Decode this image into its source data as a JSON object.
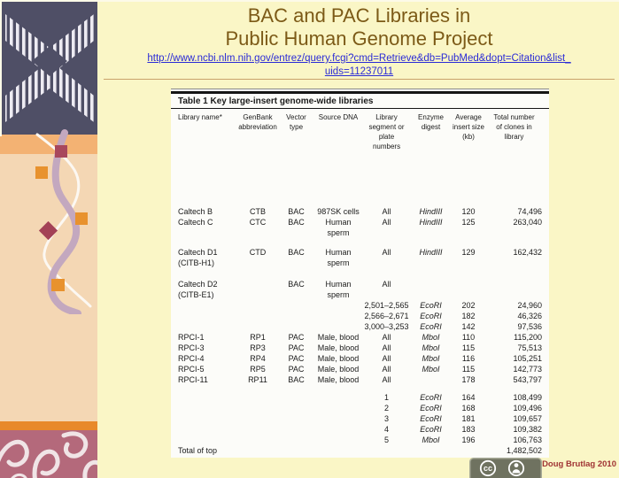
{
  "slide": {
    "title_line1": "BAC and PAC Libraries in",
    "title_line2": "Public Human Genome Project",
    "url_line1": "http://www.ncbi.nlm.nih.gov/entrez/query.fcgi?cmd=Retrieve&db=PubMed&dopt=Citation&list_",
    "url_line2": "uids=11237011",
    "credit": "Doug Brutlag 2010"
  },
  "license": {
    "cc_label": "cc",
    "by_label": "BY"
  },
  "table": {
    "title": "Table 1 Key large-insert genome-wide libraries",
    "columns": [
      "Library name*",
      "GenBank\nabbreviation",
      "Vector\ntype",
      "Source DNA",
      "Library\nsegment or\nplate\nnumbers",
      "Enzyme\ndigest",
      "Average\ninsert size\n(kb)",
      "Total number\nof clones in\nlibrary"
    ],
    "rows": [
      {
        "spacer": 62
      },
      {
        "cells": [
          "Caltech B",
          "CTB",
          "BAC",
          "987SK cells",
          "All",
          "HindIII",
          "120",
          "74,496"
        ]
      },
      {
        "cells": [
          "Caltech C",
          "CTC",
          "BAC",
          "Human\nsperm",
          "All",
          "HindIII",
          "125",
          "263,040"
        ]
      },
      {
        "spacer": 10
      },
      {
        "cells": [
          "Caltech D1\n(CITB-H1)",
          "CTD",
          "BAC",
          "Human\nsperm",
          "All",
          "HindIII",
          "129",
          "162,432"
        ]
      },
      {
        "spacer": 12
      },
      {
        "cells": [
          "Caltech D2\n(CITB-E1)",
          "",
          "BAC",
          "Human\nsperm",
          "All",
          "",
          "",
          ""
        ]
      },
      {
        "cells": [
          "",
          "",
          "",
          "",
          "2,501–2,565",
          "EcoRI",
          "202",
          "24,960"
        ]
      },
      {
        "cells": [
          "",
          "",
          "",
          "",
          "2,566–2,671",
          "EcoRI",
          "182",
          "46,326"
        ]
      },
      {
        "cells": [
          "",
          "",
          "",
          "",
          "3,000–3,253",
          "EcoRI",
          "142",
          "97,536"
        ]
      },
      {
        "cells": [
          "RPCI-1",
          "RP1",
          "PAC",
          "Male, blood",
          "All",
          "MboI",
          "110",
          "115,200"
        ]
      },
      {
        "cells": [
          "RPCI-3",
          "RP3",
          "PAC",
          "Male, blood",
          "All",
          "MboI",
          "115",
          "75,513"
        ]
      },
      {
        "cells": [
          "RPCI-4",
          "RP4",
          "PAC",
          "Male, blood",
          "All",
          "MboI",
          "116",
          "105,251"
        ]
      },
      {
        "cells": [
          "RPCI-5",
          "RP5",
          "PAC",
          "Male, blood",
          "All",
          "MboI",
          "115",
          "142,773"
        ]
      },
      {
        "cells": [
          "RPCI-11",
          "RP11",
          "BAC",
          "Male, blood",
          "All",
          "",
          "178",
          "543,797"
        ]
      },
      {
        "spacer": 8
      },
      {
        "cells": [
          "",
          "",
          "",
          "",
          "1",
          "EcoRI",
          "164",
          "108,499"
        ]
      },
      {
        "cells": [
          "",
          "",
          "",
          "",
          "2",
          "EcoRI",
          "168",
          "109,496"
        ]
      },
      {
        "cells": [
          "",
          "",
          "",
          "",
          "3",
          "EcoRI",
          "181",
          "109,657"
        ]
      },
      {
        "cells": [
          "",
          "",
          "",
          "",
          "4",
          "EcoRI",
          "183",
          "109,382"
        ]
      },
      {
        "cells": [
          "",
          "",
          "",
          "",
          "5",
          "MboI",
          "196",
          "106,763"
        ]
      },
      {
        "cells": [
          "Total of top",
          "",
          "",
          "",
          "",
          "",
          "",
          "1,482,502"
        ]
      }
    ]
  },
  "colors": {
    "slide_bg": "#FAF6C6",
    "title_text": "#7C5A17",
    "link_text": "#2B2BD6",
    "credit_text": "#A03434",
    "panel_bg": "#FCFCF9",
    "sidebar_logo_bg": "#4F4F66",
    "sidebar_band": "#F3B273",
    "sidebar_peach": "#F4D7B4",
    "sidebar_orange_bar": "#E8892B",
    "sidebar_maroon": "#B4697B",
    "accent_orange": "#E8922E",
    "accent_red": "#A34156"
  }
}
